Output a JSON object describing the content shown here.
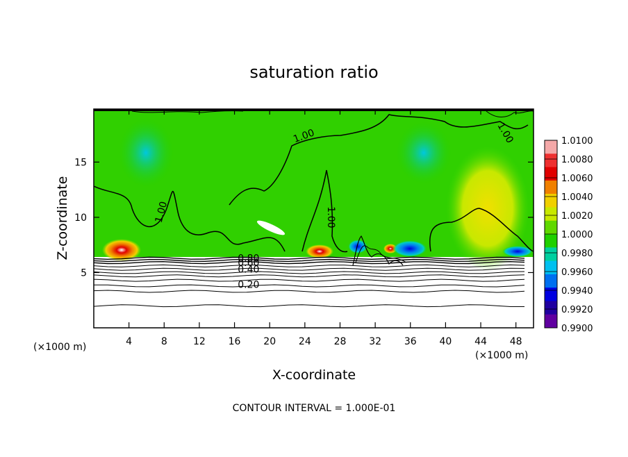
{
  "chart_data": {
    "type": "heatmap",
    "title": "saturation ratio",
    "xlabel": "X-coordinate",
    "ylabel": "Z-coordinate",
    "x_units": "(×1000 m)",
    "xlim": [
      0,
      50
    ],
    "ylim": [
      0,
      19.8
    ],
    "x_ticks": [
      4,
      8,
      12,
      16,
      20,
      24,
      28,
      32,
      36,
      40,
      44,
      48
    ],
    "y_ticks": [
      5,
      10,
      15
    ],
    "colorbar": {
      "levels": [
        "1.0100",
        "1.0080",
        "1.0060",
        "1.0040",
        "1.0020",
        "1.0000",
        "0.9980",
        "0.9960",
        "0.9940",
        "0.9920",
        "0.9900"
      ],
      "colors": [
        "#f4a8a8",
        "#ee3030",
        "#e00000",
        "#f08000",
        "#f0d000",
        "#c8e800",
        "#60d800",
        "#20d000",
        "#00d0a0",
        "#00c0f0",
        "#0070f0",
        "#0000e0",
        "#2000a0",
        "#6000a0"
      ]
    },
    "contour_labels": [
      {
        "text": "1.00",
        "x": 8.0,
        "z": 10.4
      },
      {
        "text": "1.00",
        "x": 24.0,
        "z": 17.1
      },
      {
        "text": "1.00",
        "x": 26.6,
        "z": 10.0
      },
      {
        "text": "1.00",
        "x": 46.5,
        "z": 17.5
      },
      {
        "text": "0.80",
        "x": 17.6,
        "z": 6.0
      },
      {
        "text": "0.60",
        "x": 17.6,
        "z": 5.6
      },
      {
        "text": "0.40",
        "x": 17.6,
        "z": 5.0
      },
      {
        "text": "0.20",
        "x": 17.6,
        "z": 3.6
      }
    ],
    "layered_contours_z": [
      6.3,
      6.1,
      5.9,
      5.6,
      5.3,
      5.0,
      4.7,
      4.3,
      3.8,
      3.3,
      2.0
    ],
    "grid": false,
    "legend": "colorbar-right"
  },
  "footer": {
    "contour_interval": "CONTOUR INTERVAL = 1.000E-01"
  }
}
